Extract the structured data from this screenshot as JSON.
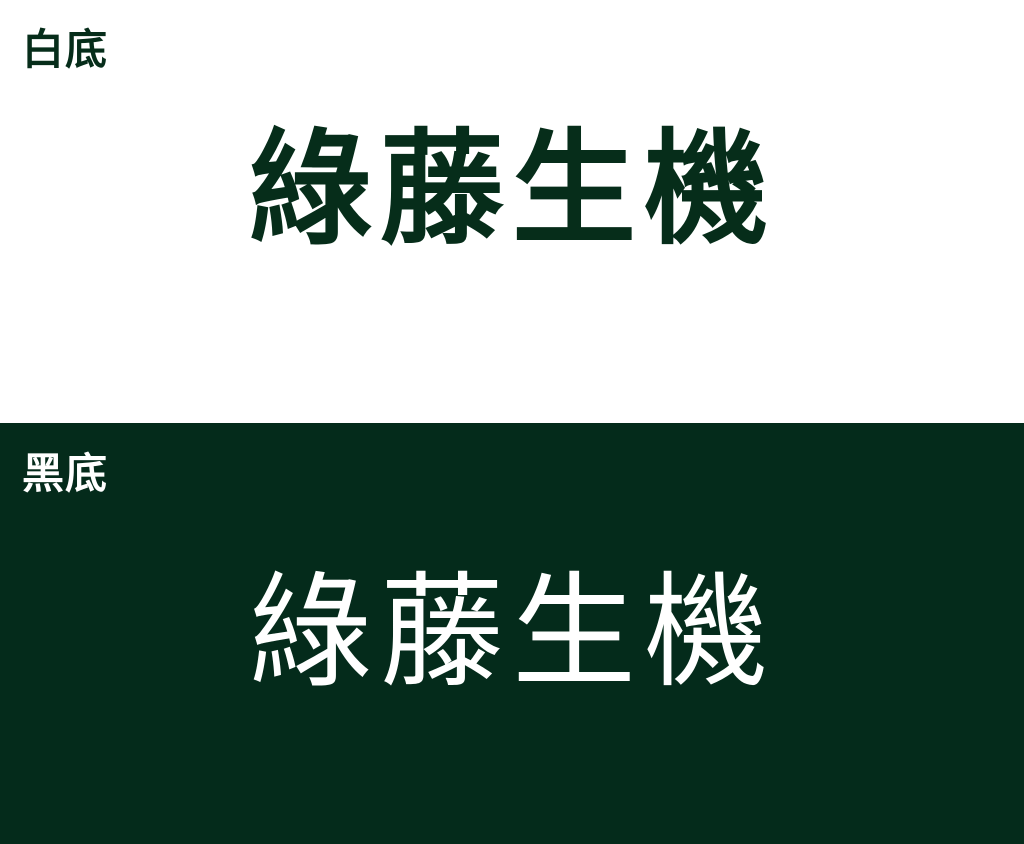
{
  "white_panel": {
    "label": "白底",
    "logo_text": "綠藤生機"
  },
  "dark_panel": {
    "label": "黑底",
    "logo_text": "綠藤生機"
  },
  "colors": {
    "white_background": "#ffffff",
    "dark_green_background": "#042b1b",
    "dark_green_text": "#062d1a",
    "white_text": "#ffffff"
  }
}
